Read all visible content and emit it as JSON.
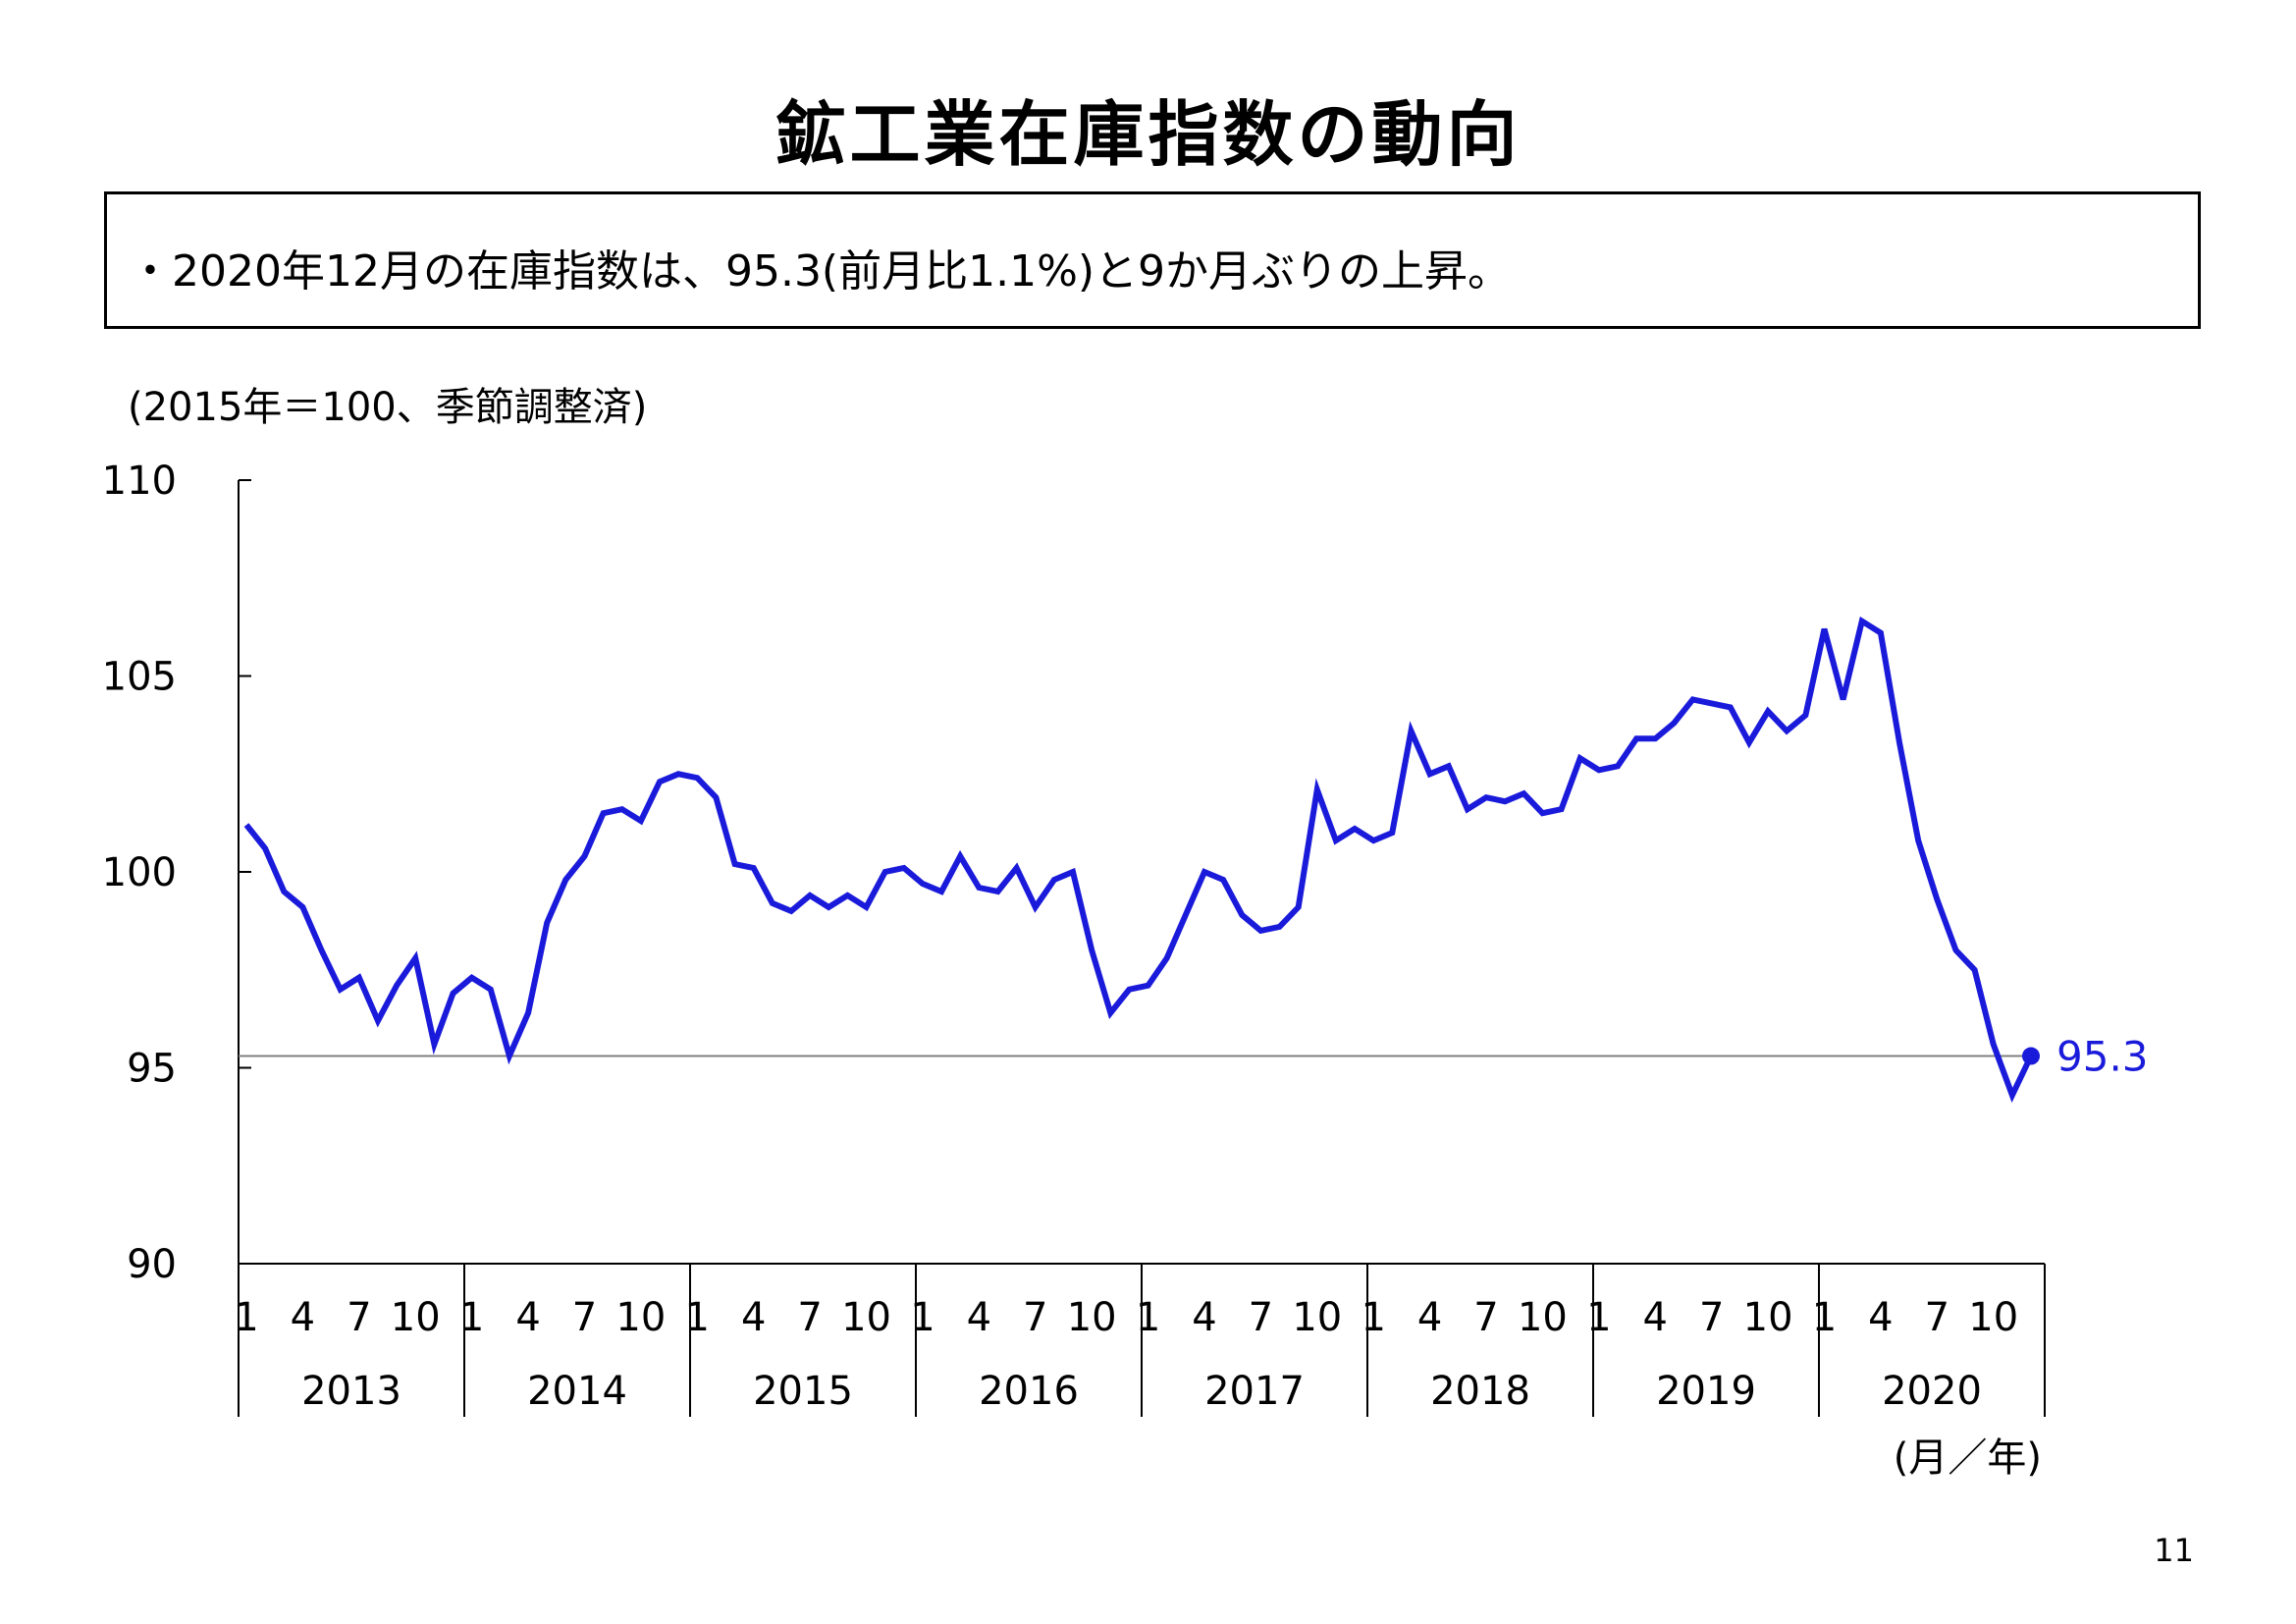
{
  "title": "鉱工業在庫指数の動向",
  "summary": "・2020年12月の在庫指数は、95.3(前月比1.1%)と9か月ぶりの上昇。",
  "page_number": "11",
  "colors": {
    "line": "#1a1adb",
    "axis": "#000000",
    "reference": "#808080",
    "label": "#1a1adb"
  },
  "chart_data": {
    "type": "line",
    "unit_label": "(2015年＝100、季節調整済)",
    "x_axis_label": "(月／年)",
    "ylim": [
      90,
      110
    ],
    "yticks": [
      "110",
      "105",
      "100",
      "95",
      "90"
    ],
    "month_ticks": [
      "1",
      "4",
      "7",
      "10"
    ],
    "years": [
      "2013",
      "2014",
      "2015",
      "2016",
      "2017",
      "2018",
      "2019",
      "2020"
    ],
    "reference_line": 95.3,
    "last_value_label": "95.3",
    "series": [
      {
        "values": [
          101.2,
          100.6,
          99.5,
          99.1,
          98.0,
          97.0,
          97.3,
          96.2,
          97.1,
          97.8,
          95.6,
          96.9,
          97.3,
          97.0,
          95.3,
          96.4,
          98.7,
          99.8,
          100.4,
          101.5,
          101.6,
          101.3,
          102.3,
          102.5,
          102.4,
          101.9,
          100.2,
          100.1,
          99.2,
          99.0,
          99.4,
          99.1,
          99.4,
          99.1,
          100.0,
          100.1,
          99.7,
          99.5,
          100.4,
          99.6,
          99.5,
          100.1,
          99.1,
          99.8,
          100.0,
          98.0,
          96.4,
          97.0,
          97.1,
          97.8,
          98.9,
          100.0,
          99.8,
          98.9,
          98.5,
          98.6,
          99.1,
          102.1,
          100.8,
          101.1,
          100.8,
          101.0,
          103.6,
          102.5,
          102.7,
          101.6,
          101.9,
          101.8,
          102.0,
          101.5,
          101.6,
          102.9,
          102.6,
          102.7,
          103.4,
          103.4,
          103.8,
          104.4,
          104.3,
          104.2,
          103.3,
          104.1,
          103.6,
          104.0,
          106.2,
          104.4,
          106.4,
          106.1,
          103.3,
          100.8,
          99.3,
          98.0,
          97.5,
          95.6,
          94.3,
          95.3
        ]
      }
    ]
  }
}
